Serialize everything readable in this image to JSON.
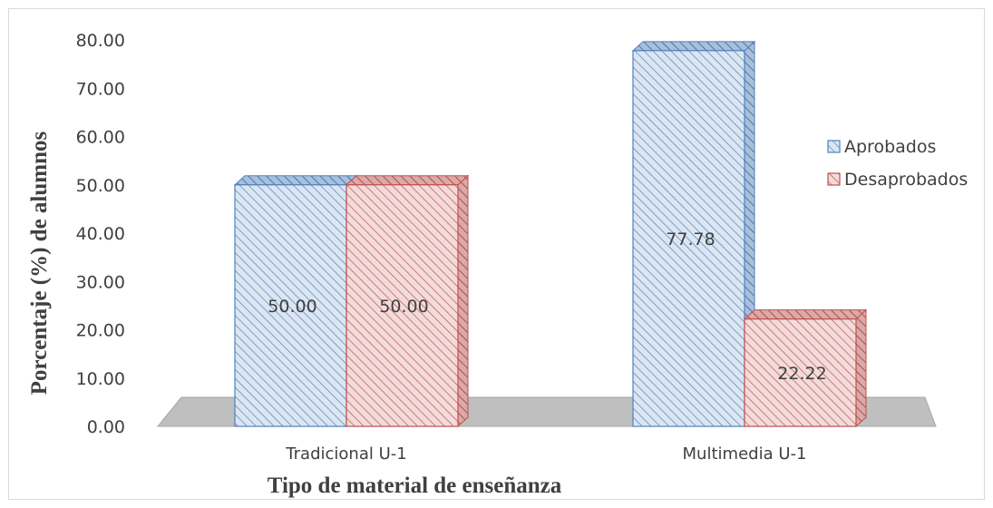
{
  "chart_data": {
    "type": "bar",
    "title": "",
    "xlabel": "Tipo de material de enseñanza",
    "ylabel": "Porcentaje (%) de alumnos",
    "categories": [
      "Tradicional U-1",
      "Multimedia U-1"
    ],
    "series": [
      {
        "name": "Aprobados",
        "values": [
          50.0,
          77.78
        ],
        "color": "#4f81bd",
        "fill": "#dce6f2"
      },
      {
        "name": "Desaprobados",
        "values": [
          50.0,
          22.22
        ],
        "color": "#c0504d",
        "fill": "#f2dcdb"
      }
    ],
    "ylim": [
      0,
      80
    ],
    "yticks": [
      "0.00",
      "10.00",
      "20.00",
      "30.00",
      "40.00",
      "50.00",
      "60.00",
      "70.00",
      "80.00"
    ],
    "data_labels": [
      "50.00",
      "50.00",
      "77.78",
      "22.22"
    ],
    "legend_position": "right",
    "style": "3d-hatched",
    "grid": false
  }
}
